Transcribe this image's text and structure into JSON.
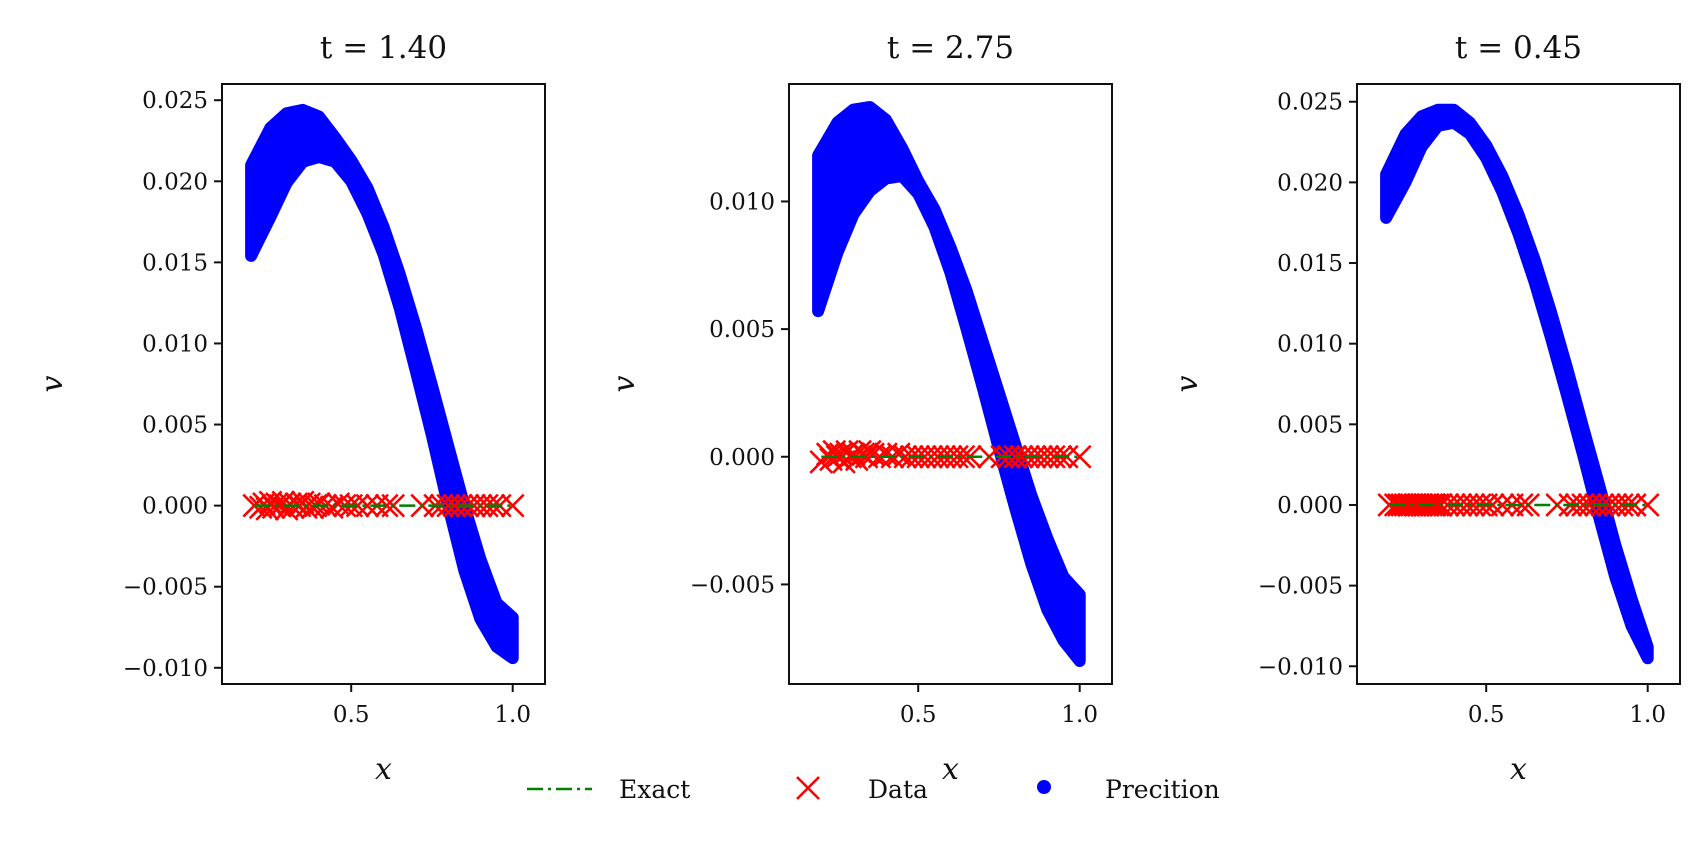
{
  "chart_data": [
    {
      "type": "scatter",
      "title": "t = 1.40",
      "xlabel": "x",
      "ylabel": "v",
      "xlim": [
        0.1,
        1.1
      ],
      "ylim": [
        -0.011,
        0.026
      ],
      "xticks": [
        0.5,
        1.0
      ],
      "xtick_labels": [
        "0.5",
        "1.0"
      ],
      "yticks": [
        -0.01,
        -0.005,
        0.0,
        0.005,
        0.01,
        0.015,
        0.02,
        0.025
      ],
      "ytick_labels": [
        "−0.010",
        "−0.005",
        "0.000",
        "0.005",
        "0.010",
        "0.015",
        "0.020",
        "0.025"
      ],
      "series": [
        {
          "name": "Precition",
          "kind": "band",
          "color": "#0000ff",
          "x": [
            0.19,
            0.25,
            0.3,
            0.35,
            0.4,
            0.45,
            0.5,
            0.55,
            0.6,
            0.65,
            0.7,
            0.75,
            0.8,
            0.85,
            0.9,
            0.95,
            1.0
          ],
          "upper": [
            0.021,
            0.0233,
            0.0242,
            0.0244,
            0.024,
            0.0227,
            0.0213,
            0.0196,
            0.0172,
            0.0143,
            0.011,
            0.0074,
            0.0037,
            0.0,
            -0.0033,
            -0.006,
            -0.0069
          ],
          "lower": [
            0.0154,
            0.0178,
            0.0199,
            0.0212,
            0.0215,
            0.0212,
            0.02,
            0.018,
            0.0155,
            0.0122,
            0.0083,
            0.0043,
            0.0,
            -0.004,
            -0.007,
            -0.0087,
            -0.0094
          ]
        },
        {
          "name": "Data",
          "kind": "marker-x",
          "color": "#ff0000",
          "x": [
            0.2,
            0.22,
            0.23,
            0.24,
            0.25,
            0.26,
            0.27,
            0.28,
            0.29,
            0.3,
            0.31,
            0.32,
            0.33,
            0.34,
            0.35,
            0.36,
            0.37,
            0.38,
            0.39,
            0.4,
            0.42,
            0.44,
            0.46,
            0.48,
            0.5,
            0.52,
            0.55,
            0.58,
            0.61,
            0.63,
            0.72,
            0.76,
            0.78,
            0.8,
            0.82,
            0.84,
            0.86,
            0.88,
            0.9,
            0.92,
            0.94,
            0.96,
            1.0
          ],
          "y": [
            0.0,
            -0.0001,
            0.0001,
            -0.0002,
            0.0002,
            -0.0001,
            0.0001,
            0.0,
            0.0002,
            -0.0002,
            0.0001,
            -0.0001,
            0.0001,
            0.0,
            0.0002,
            -0.0001,
            0.0001,
            -0.0001,
            0.0,
            0.0001,
            0.0,
            -0.0001,
            0.0001,
            0.0,
            0.0,
            0.0,
            0.0,
            0.0,
            0.0,
            0.0,
            0.0,
            0.0,
            0.0,
            0.0,
            0.0,
            0.0,
            0.0,
            0.0,
            0.0,
            0.0,
            0.0,
            0.0,
            0.0
          ]
        },
        {
          "name": "Exact",
          "kind": "line-dashdot",
          "color": "#008000",
          "x": [
            0.2,
            1.0
          ],
          "y": [
            0.0,
            0.0
          ]
        }
      ]
    },
    {
      "type": "scatter",
      "title": "t = 2.75",
      "xlabel": "x",
      "ylabel": "v",
      "xlim": [
        0.1,
        1.1
      ],
      "ylim": [
        -0.0089,
        0.0146
      ],
      "xticks": [
        0.5,
        1.0
      ],
      "xtick_labels": [
        "0.5",
        "1.0"
      ],
      "yticks": [
        -0.005,
        0.0,
        0.005,
        0.01
      ],
      "ytick_labels": [
        "−0.005",
        "0.000",
        "0.005",
        "0.010"
      ],
      "series": [
        {
          "name": "Precition",
          "kind": "band",
          "color": "#0000ff",
          "x": [
            0.19,
            0.25,
            0.3,
            0.35,
            0.4,
            0.45,
            0.5,
            0.55,
            0.6,
            0.65,
            0.7,
            0.75,
            0.8,
            0.85,
            0.9,
            0.95,
            1.0
          ],
          "upper": [
            0.0118,
            0.0131,
            0.0136,
            0.0137,
            0.0132,
            0.0121,
            0.0108,
            0.0097,
            0.0082,
            0.0065,
            0.0045,
            0.0025,
            0.0005,
            -0.0015,
            -0.0032,
            -0.0047,
            -0.0054
          ],
          "lower": [
            0.0057,
            0.008,
            0.0095,
            0.0104,
            0.0109,
            0.011,
            0.0103,
            0.009,
            0.0072,
            0.005,
            0.0027,
            0.0003,
            -0.002,
            -0.0042,
            -0.006,
            -0.0072,
            -0.008
          ]
        },
        {
          "name": "Data",
          "kind": "marker-x",
          "color": "#ff0000",
          "x": [
            0.2,
            0.22,
            0.23,
            0.24,
            0.25,
            0.26,
            0.27,
            0.28,
            0.29,
            0.3,
            0.31,
            0.32,
            0.33,
            0.34,
            0.35,
            0.36,
            0.38,
            0.4,
            0.42,
            0.44,
            0.46,
            0.48,
            0.5,
            0.52,
            0.54,
            0.56,
            0.58,
            0.6,
            0.62,
            0.64,
            0.66,
            0.72,
            0.76,
            0.78,
            0.8,
            0.82,
            0.84,
            0.86,
            0.88,
            0.9,
            0.92,
            0.94,
            0.96,
            1.0
          ],
          "y": [
            -0.0002,
            0.0001,
            -0.0001,
            0.0002,
            0.0,
            0.0001,
            -0.0002,
            0.0002,
            0.0,
            0.0001,
            -0.0001,
            0.0002,
            0.0001,
            0.0,
            0.0002,
            0.0001,
            0.0,
            0.0001,
            0.0,
            0.0001,
            0.0,
            0.0,
            0.0,
            0.0,
            0.0,
            0.0,
            0.0,
            0.0,
            0.0,
            0.0,
            0.0,
            0.0,
            0.0,
            0.0,
            0.0,
            0.0,
            0.0,
            0.0,
            0.0,
            0.0,
            0.0,
            0.0,
            0.0,
            0.0
          ]
        },
        {
          "name": "Exact",
          "kind": "line-dashdot",
          "color": "#008000",
          "x": [
            0.2,
            1.0
          ],
          "y": [
            0.0,
            0.0
          ]
        }
      ]
    },
    {
      "type": "scatter",
      "title": "t = 0.45",
      "xlabel": "x",
      "ylabel": "v",
      "xlim": [
        0.1,
        1.1
      ],
      "ylim": [
        -0.0111,
        0.0261
      ],
      "xticks": [
        0.5,
        1.0
      ],
      "xtick_labels": [
        "0.5",
        "1.0"
      ],
      "yticks": [
        -0.01,
        -0.005,
        0.0,
        0.005,
        0.01,
        0.015,
        0.02,
        0.025
      ],
      "ytick_labels": [
        "−0.010",
        "−0.005",
        "0.000",
        "0.005",
        "0.010",
        "0.015",
        "0.020",
        "0.025"
      ],
      "series": [
        {
          "name": "Precition",
          "kind": "band",
          "color": "#0000ff",
          "x": [
            0.19,
            0.25,
            0.3,
            0.35,
            0.4,
            0.45,
            0.5,
            0.55,
            0.6,
            0.65,
            0.7,
            0.75,
            0.8,
            0.85,
            0.9,
            0.95,
            1.0
          ],
          "upper": [
            0.0205,
            0.023,
            0.0241,
            0.0245,
            0.0245,
            0.0237,
            0.0223,
            0.0204,
            0.018,
            0.0152,
            0.012,
            0.0085,
            0.0048,
            0.0012,
            -0.0025,
            -0.0058,
            -0.0088
          ],
          "lower": [
            0.0178,
            0.02,
            0.0222,
            0.0235,
            0.0237,
            0.023,
            0.0215,
            0.0194,
            0.0168,
            0.0138,
            0.0104,
            0.0068,
            0.0031,
            -0.0008,
            -0.0045,
            -0.0075,
            -0.0095
          ]
        },
        {
          "name": "Data",
          "kind": "marker-x",
          "color": "#ff0000",
          "x": [
            0.2,
            0.22,
            0.23,
            0.24,
            0.25,
            0.26,
            0.27,
            0.28,
            0.29,
            0.3,
            0.31,
            0.32,
            0.33,
            0.34,
            0.35,
            0.36,
            0.38,
            0.4,
            0.42,
            0.44,
            0.46,
            0.48,
            0.5,
            0.52,
            0.55,
            0.58,
            0.61,
            0.63,
            0.72,
            0.76,
            0.78,
            0.8,
            0.82,
            0.84,
            0.86,
            0.88,
            0.9,
            0.92,
            0.94,
            0.96,
            1.0
          ],
          "y": [
            0.0,
            0.0,
            0.0,
            0.0,
            0.0,
            0.0,
            0.0,
            0.0,
            0.0,
            0.0,
            0.0,
            0.0,
            0.0,
            0.0,
            0.0,
            0.0,
            0.0,
            0.0,
            0.0,
            0.0,
            0.0,
            0.0,
            0.0,
            0.0,
            0.0,
            0.0,
            0.0,
            0.0,
            0.0,
            0.0,
            0.0,
            0.0,
            0.0,
            0.0,
            0.0,
            0.0,
            0.0,
            0.0,
            0.0,
            0.0,
            0.0
          ]
        },
        {
          "name": "Exact",
          "kind": "line-dashdot",
          "color": "#008000",
          "x": [
            0.2,
            1.0
          ],
          "y": [
            0.0,
            0.0
          ]
        }
      ]
    }
  ],
  "legend": {
    "placement": "bottom-center",
    "items": [
      {
        "label": "Exact",
        "marker": "line-dashdot",
        "color": "#008000"
      },
      {
        "label": "Data",
        "marker": "x",
        "color": "#ff0000"
      },
      {
        "label": "Precition",
        "marker": "dot",
        "color": "#0000ff"
      }
    ]
  }
}
